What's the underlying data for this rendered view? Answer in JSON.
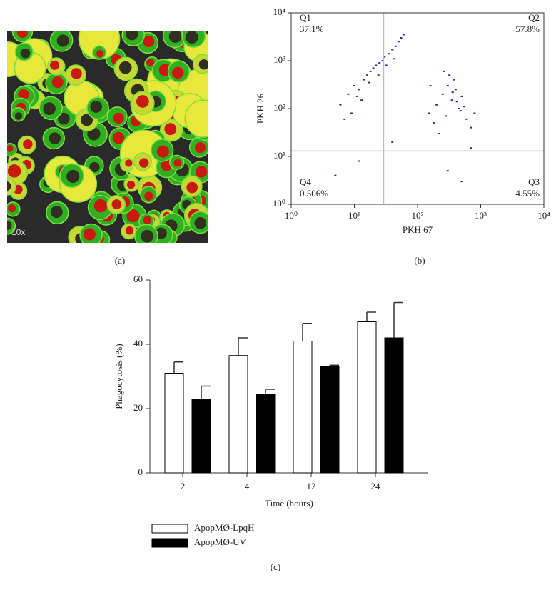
{
  "image_panel": {
    "label": "(a)",
    "magnification": "10x"
  },
  "chart_data": [
    {
      "type": "scatter",
      "panel_label": "(b)",
      "xlabel": "PKH 67",
      "ylabel": "PKH 26",
      "log_x": true,
      "log_y": true,
      "color": "#1f2fa8",
      "xlim": [
        1,
        10000
      ],
      "ylim": [
        1,
        10000
      ],
      "xticks": [
        {
          "value": 1,
          "label": "10⁰"
        },
        {
          "value": 10,
          "label": "10¹"
        },
        {
          "value": 100,
          "label": "10²"
        },
        {
          "value": 1000,
          "label": "10³"
        },
        {
          "value": 10000,
          "label": "10⁴"
        }
      ],
      "yticks": [
        {
          "value": 1,
          "label": "10⁰"
        },
        {
          "value": 10,
          "label": "10¹"
        },
        {
          "value": 100,
          "label": "10²"
        },
        {
          "value": 1000,
          "label": "10³"
        },
        {
          "value": 10000,
          "label": "10⁴"
        }
      ],
      "gate_x": 29,
      "gate_y": 13,
      "quadrants": [
        {
          "name": "Q1",
          "value": "37.1%"
        },
        {
          "name": "Q2",
          "value": "57.8%"
        },
        {
          "name": "Q3",
          "value": "4.55%"
        },
        {
          "name": "Q4",
          "value": "0.506%"
        }
      ],
      "x": [
        6,
        8,
        10,
        12,
        14,
        16,
        18,
        20,
        22,
        25,
        28,
        30,
        35,
        40,
        45,
        50,
        55,
        60,
        9,
        13,
        17,
        24,
        32,
        42,
        7,
        11,
        150,
        200,
        250,
        300,
        350,
        400,
        450,
        500,
        600,
        700,
        180,
        280,
        380,
        480,
        220,
        320,
        420,
        260,
        360,
        550,
        800,
        160,
        40,
        12,
        300,
        500,
        5,
        700
      ],
      "y": [
        120,
        200,
        300,
        250,
        400,
        500,
        600,
        700,
        800,
        900,
        1000,
        1200,
        1400,
        1700,
        2000,
        2500,
        3000,
        3500,
        80,
        150,
        350,
        500,
        800,
        1100,
        60,
        180,
        80,
        120,
        200,
        300,
        150,
        250,
        100,
        180,
        60,
        40,
        50,
        70,
        400,
        90,
        30,
        500,
        140,
        600,
        220,
        110,
        80,
        300,
        20,
        8,
        5,
        3,
        4,
        15
      ]
    },
    {
      "type": "bar",
      "panel_label": "(c)",
      "xlabel": "Time (hours)",
      "ylabel": "Phagocytosis (%)",
      "categories": [
        "2",
        "4",
        "12",
        "24"
      ],
      "ylim": [
        0,
        60
      ],
      "yticks": [
        0,
        20,
        40,
        60
      ],
      "series": [
        {
          "name": "ApopMØ-LpqH",
          "color": "#ffffff",
          "values": [
            31,
            36.5,
            41,
            47
          ],
          "errors": [
            3.5,
            5.5,
            5.5,
            3
          ]
        },
        {
          "name": "ApopMØ-UV",
          "color": "#000000",
          "values": [
            23,
            24.5,
            33,
            42
          ],
          "errors": [
            4,
            1.5,
            0.5,
            11
          ]
        }
      ]
    }
  ]
}
